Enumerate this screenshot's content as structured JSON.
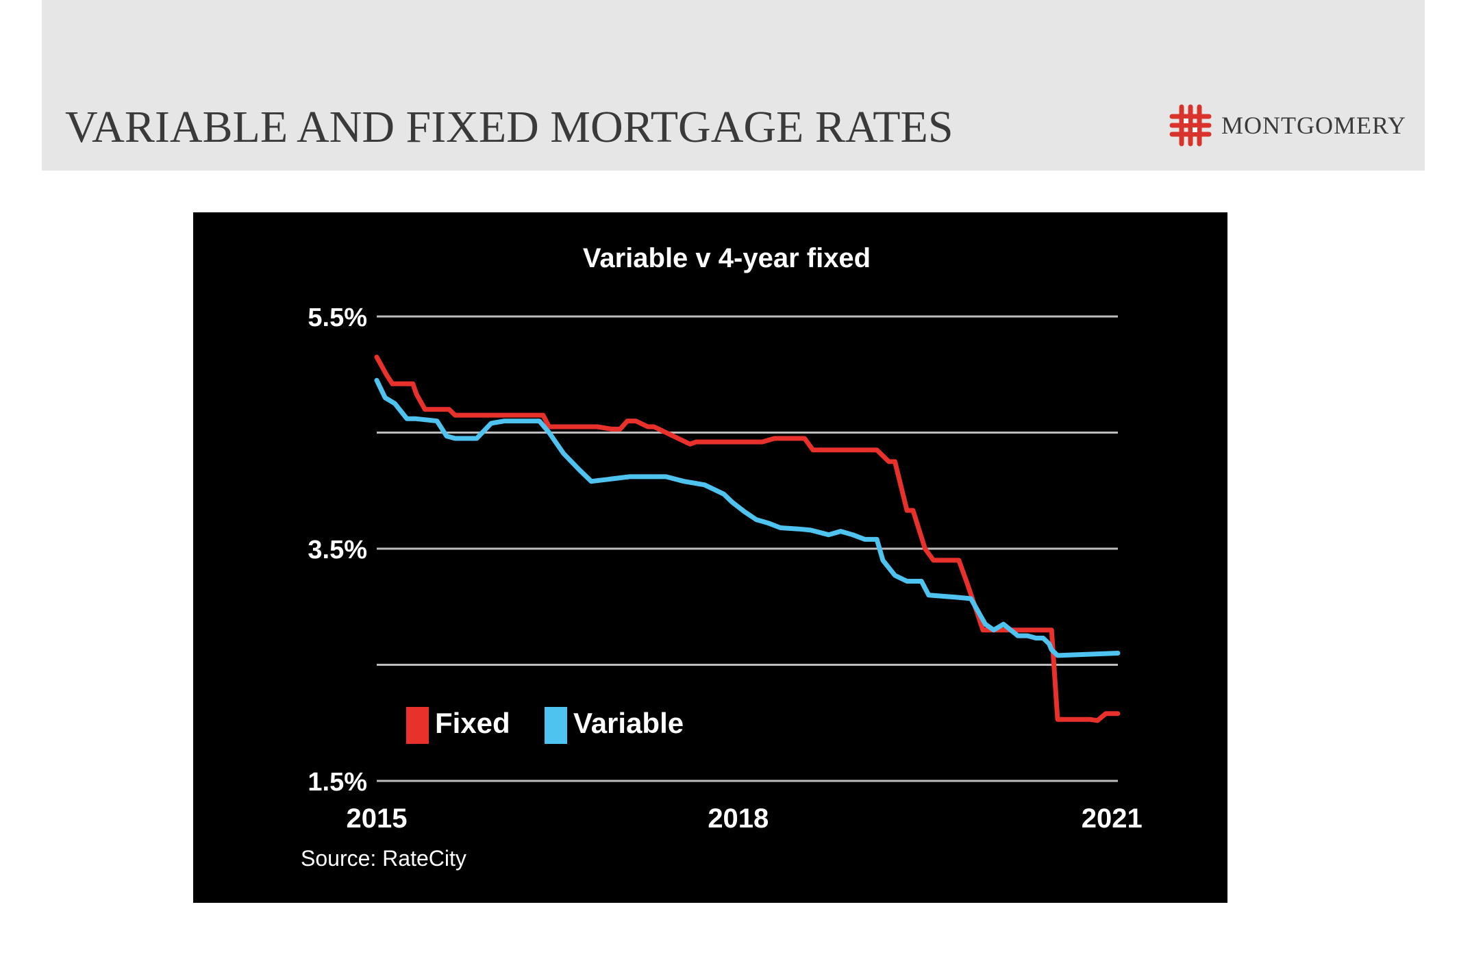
{
  "page": {
    "title": "VARIABLE AND FIXED MORTGAGE RATES",
    "logo_text": "MONTGOMERY",
    "logo_icon": "montgomery-knot-logo"
  },
  "colors": {
    "header_band": "#e6e6e6",
    "chart_bg": "#000000",
    "fixed": "#e8312a",
    "variable": "#4fc3f0",
    "gridline": "#bdbdbd",
    "logo": "#d9342b"
  },
  "chart_data": {
    "type": "line",
    "title": "Variable v 4-year fixed",
    "xlabel": "",
    "ylabel": "",
    "source": "Source: RateCity",
    "x_ticks": [
      "2015",
      "2018",
      "2021"
    ],
    "xlim": [
      2015,
      2021.3
    ],
    "y_ticks": [
      "5.5%",
      "3.5%",
      "1.5%"
    ],
    "ylim": [
      1.5,
      5.5
    ],
    "grid": true,
    "gridlines_y": [
      5.5,
      4.5,
      3.5,
      2.5,
      1.5
    ],
    "legend": {
      "position": "bottom-left"
    },
    "series": [
      {
        "name": "Fixed",
        "x": [
          2015.0,
          2015.08,
          2015.13,
          2015.3,
          2015.33,
          2015.4,
          2015.6,
          2015.65,
          2015.78,
          2016.0,
          2016.38,
          2016.43,
          2016.83,
          2016.95,
          2017.02,
          2017.08,
          2017.15,
          2017.25,
          2017.3,
          2017.6,
          2017.65,
          2017.95,
          2018.05,
          2018.2,
          2018.3,
          2018.35,
          2018.55,
          2018.62,
          2018.7,
          2018.77,
          2019.15,
          2019.25,
          2019.3,
          2019.4,
          2019.45,
          2019.55,
          2019.62,
          2019.83,
          2019.9,
          2020.03,
          2020.1,
          2020.23,
          2020.5,
          2020.6,
          2020.65,
          2020.92,
          2020.98,
          2021.05,
          2021.15
        ],
        "values": [
          5.15,
          5.0,
          4.92,
          4.92,
          4.83,
          4.7,
          4.7,
          4.65,
          4.65,
          4.65,
          4.65,
          4.55,
          4.55,
          4.53,
          4.53,
          4.6,
          4.6,
          4.55,
          4.55,
          4.4,
          4.42,
          4.42,
          4.42,
          4.42,
          4.45,
          4.45,
          4.45,
          4.35,
          4.35,
          4.35,
          4.35,
          4.25,
          4.25,
          3.83,
          3.83,
          3.5,
          3.4,
          3.4,
          3.2,
          2.8,
          2.8,
          2.8,
          2.8,
          2.8,
          2.03,
          2.03,
          2.02,
          2.08,
          2.08
        ]
      },
      {
        "name": "Variable",
        "x": [
          2015.0,
          2015.07,
          2015.15,
          2015.25,
          2015.32,
          2015.5,
          2015.58,
          2015.65,
          2015.83,
          2015.95,
          2016.06,
          2016.2,
          2016.35,
          2016.43,
          2016.55,
          2016.68,
          2016.78,
          2017.1,
          2017.4,
          2017.55,
          2017.72,
          2017.88,
          2017.95,
          2018.05,
          2018.15,
          2018.25,
          2018.35,
          2018.5,
          2018.6,
          2018.75,
          2018.85,
          2018.95,
          2019.05,
          2019.15,
          2019.2,
          2019.3,
          2019.4,
          2019.52,
          2019.58,
          2019.83,
          2019.93,
          2020.05,
          2020.12,
          2020.2,
          2020.32,
          2020.4,
          2020.47,
          2020.53,
          2020.58,
          2020.6,
          2020.65,
          2021.15
        ],
        "values": [
          4.95,
          4.8,
          4.75,
          4.62,
          4.62,
          4.6,
          4.47,
          4.45,
          4.45,
          4.58,
          4.6,
          4.6,
          4.6,
          4.5,
          4.32,
          4.18,
          4.08,
          4.12,
          4.12,
          4.08,
          4.05,
          3.97,
          3.9,
          3.82,
          3.75,
          3.72,
          3.68,
          3.67,
          3.66,
          3.62,
          3.65,
          3.62,
          3.58,
          3.58,
          3.4,
          3.27,
          3.22,
          3.22,
          3.1,
          3.08,
          3.07,
          2.85,
          2.8,
          2.85,
          2.75,
          2.75,
          2.73,
          2.73,
          2.68,
          2.63,
          2.58,
          2.6
        ]
      }
    ]
  }
}
